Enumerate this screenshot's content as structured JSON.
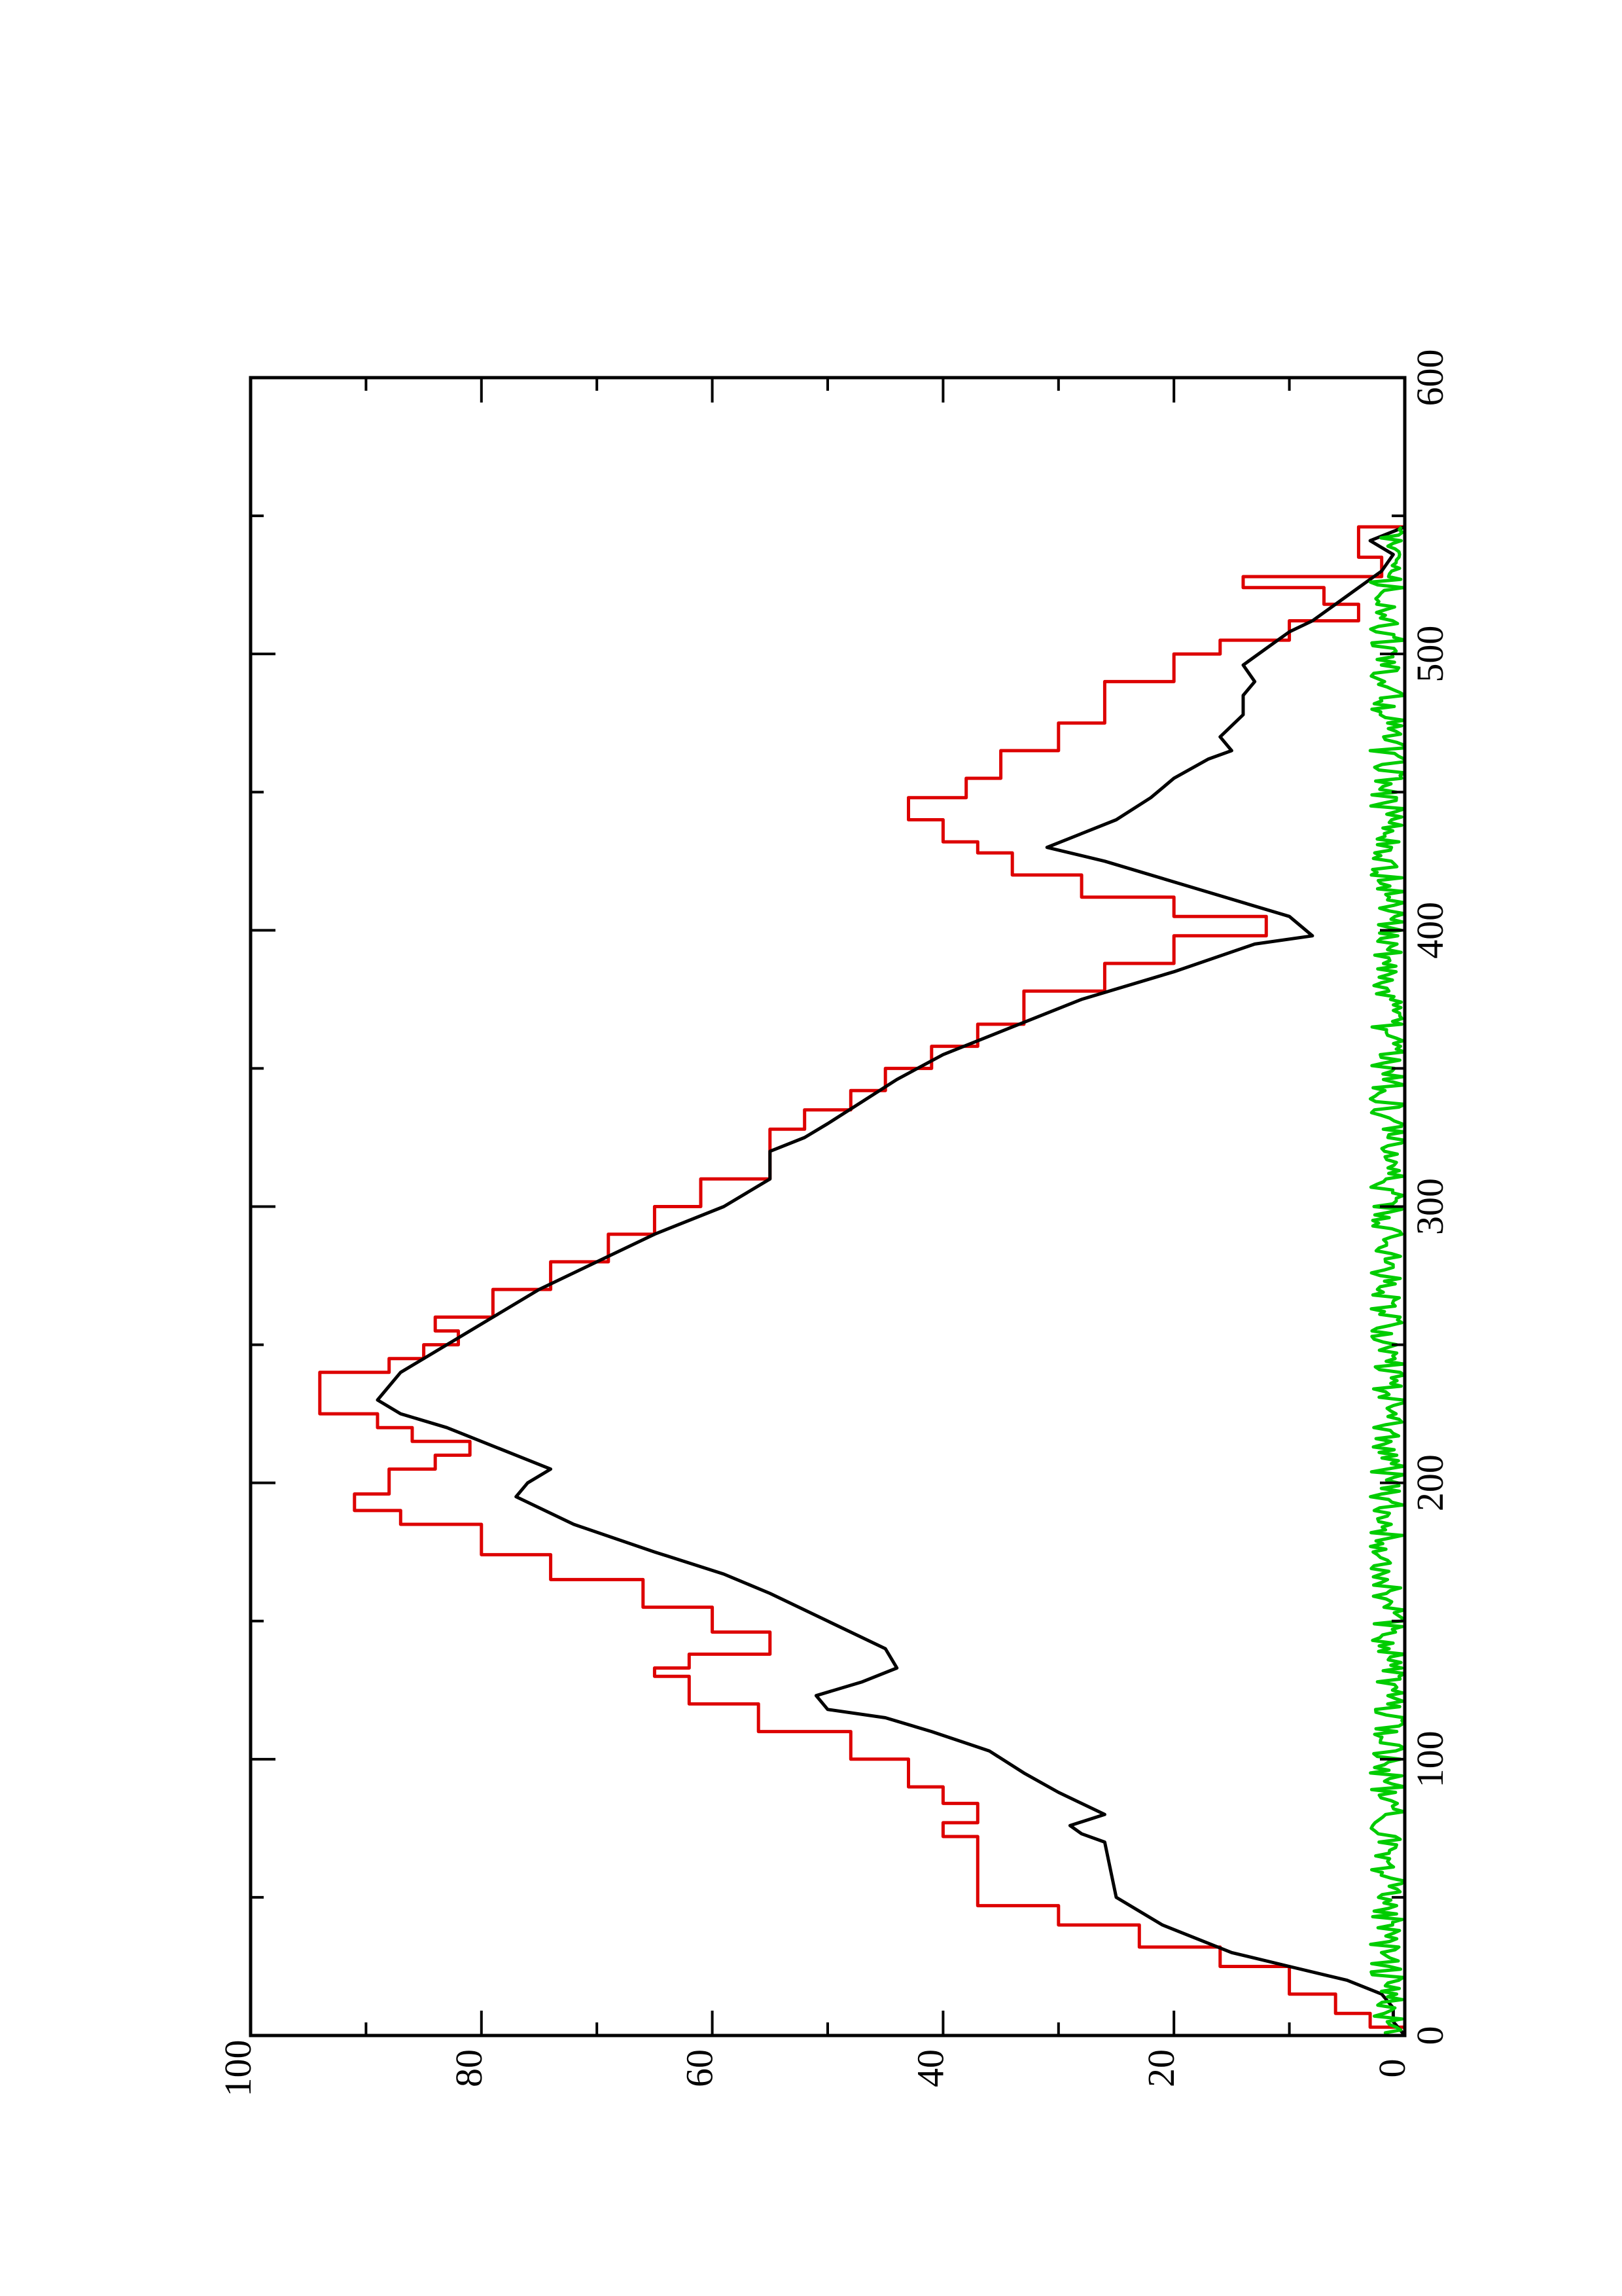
{
  "chart_data": {
    "type": "line",
    "orientation": "rotated 90° counter-clockwise",
    "title": "",
    "xlabel": "",
    "ylabel": "",
    "xlim": [
      0,
      600
    ],
    "ylim": [
      0,
      100
    ],
    "x_ticks": [
      "0",
      "100",
      "200",
      "300",
      "400",
      "500",
      "600"
    ],
    "y_ticks": [
      "0",
      "20",
      "40",
      "60",
      "80",
      "100"
    ],
    "grid": false,
    "legend": "none",
    "colors": {
      "axes": "#000000",
      "red_series": "#dd0000",
      "black_series": "#000000",
      "green_series": "#00cc00"
    },
    "series": [
      {
        "color": "#dd0000",
        "step": true,
        "x": [
          0,
          3,
          8,
          15,
          25,
          32,
          40,
          47,
          60,
          68,
          72,
          77,
          84,
          90,
          100,
          110,
          120,
          130,
          133,
          138,
          146,
          155,
          165,
          174,
          185,
          190,
          196,
          205,
          210,
          215,
          220,
          225,
          240,
          245,
          250,
          255,
          260,
          270,
          280,
          290,
          300,
          310,
          322,
          328,
          335,
          342,
          350,
          358,
          366,
          378,
          388,
          398,
          405,
          412,
          420,
          428,
          432,
          440,
          448,
          455,
          465,
          475,
          490,
          500,
          505,
          512,
          518,
          524,
          528,
          535,
          540,
          546
        ],
        "y": [
          0,
          3,
          6,
          10,
          16,
          23,
          30,
          37,
          37,
          37,
          40,
          37,
          40,
          43,
          48,
          56,
          62,
          65,
          62,
          55,
          60,
          66,
          74,
          80,
          87,
          91,
          88,
          84,
          81,
          86,
          89,
          94,
          88,
          85,
          82,
          84,
          79,
          74,
          69,
          65,
          61,
          55,
          55,
          52,
          48,
          45,
          41,
          37,
          33,
          26,
          20,
          12,
          20,
          28,
          34,
          37,
          40,
          43,
          38,
          35,
          30,
          26,
          20,
          16,
          10,
          4,
          7,
          14,
          2,
          4,
          4,
          0
        ]
      },
      {
        "color": "#000000",
        "step": false,
        "x": [
          0,
          5,
          10,
          15,
          20,
          25,
          30,
          40,
          50,
          70,
          73,
          76,
          80,
          88,
          95,
          103,
          110,
          115,
          118,
          123,
          128,
          133,
          140,
          150,
          160,
          167,
          175,
          185,
          195,
          200,
          205,
          210,
          215,
          220,
          225,
          230,
          240,
          250,
          260,
          270,
          280,
          290,
          300,
          310,
          320,
          325,
          330,
          338,
          346,
          355,
          365,
          375,
          385,
          395,
          398,
          405,
          415,
          425,
          430,
          435,
          440,
          448,
          455,
          462,
          465,
          470,
          478,
          485,
          490,
          496,
          502,
          508,
          512,
          518,
          524,
          530,
          536,
          541,
          546
        ],
        "y": [
          0,
          1,
          1,
          2,
          5,
          10,
          15,
          21,
          25,
          26,
          28,
          29,
          26,
          30,
          33,
          36,
          41,
          45,
          50,
          51,
          47,
          44,
          45,
          50,
          55,
          59,
          65,
          72,
          77,
          76,
          74,
          77,
          80,
          83,
          87,
          89,
          87,
          83,
          79,
          75,
          70,
          65,
          59,
          55,
          55,
          52,
          50,
          47,
          44,
          40,
          34,
          28,
          20,
          13,
          8,
          10,
          18,
          26,
          31,
          28,
          25,
          22,
          20,
          17,
          15,
          16,
          14,
          14,
          13,
          14,
          12,
          10,
          8,
          6,
          4,
          2,
          1,
          3,
          0
        ]
      },
      {
        "color": "#00cc00",
        "step": false,
        "noisy": true,
        "x_range": [
          0,
          546
        ],
        "y_range": [
          0,
          3
        ]
      }
    ]
  }
}
